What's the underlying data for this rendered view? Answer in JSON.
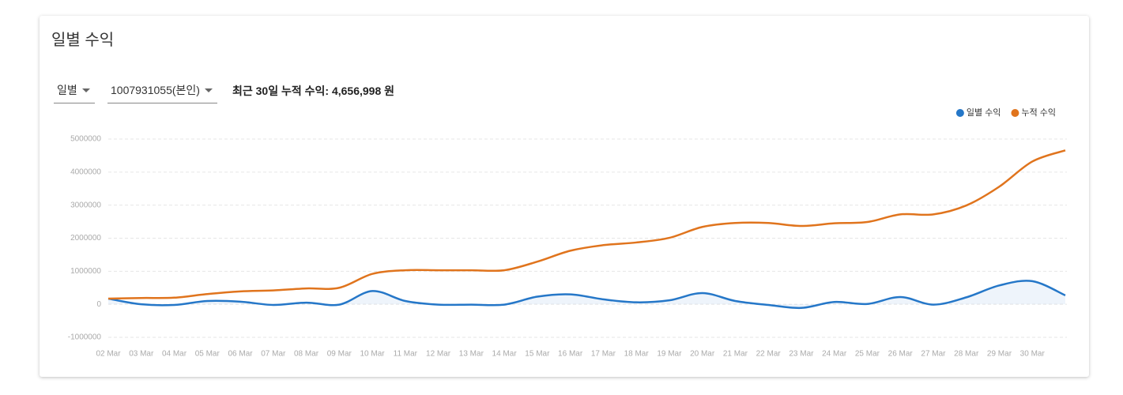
{
  "ui": {
    "title": "일별 수익",
    "dropdowns": [
      "일별",
      "1007931055(본인)"
    ],
    "summary": "최근 30일 누적 수익: 4,656,998 원"
  },
  "chart_data": {
    "type": "line",
    "categories": [
      "02 Mar",
      "03 Mar",
      "04 Mar",
      "05 Mar",
      "06 Mar",
      "07 Mar",
      "08 Mar",
      "09 Mar",
      "10 Mar",
      "11 Mar",
      "12 Mar",
      "13 Mar",
      "14 Mar",
      "15 Mar",
      "16 Mar",
      "17 Mar",
      "18 Mar",
      "19 Mar",
      "20 Mar",
      "21 Mar",
      "22 Mar",
      "23 Mar",
      "24 Mar",
      "25 Mar",
      "26 Mar",
      "27 Mar",
      "28 Mar",
      "29 Mar",
      "30 Mar",
      null
    ],
    "series": [
      {
        "name": "일별 수익",
        "color": "#2577c8",
        "area": true,
        "values": [
          170000,
          0,
          -20000,
          100000,
          80000,
          -20000,
          50000,
          -10000,
          400000,
          100000,
          -10000,
          -10000,
          -10000,
          230000,
          300000,
          150000,
          60000,
          120000,
          340000,
          100000,
          -20000,
          -110000,
          70000,
          10000,
          220000,
          -10000,
          210000,
          570000,
          700000,
          270000
        ]
      },
      {
        "name": "누적 수익",
        "color": "#e0741d",
        "area": false,
        "values": [
          170000,
          190000,
          200000,
          310000,
          390000,
          420000,
          480000,
          500000,
          920000,
          1030000,
          1030000,
          1030000,
          1030000,
          1290000,
          1620000,
          1790000,
          1870000,
          2010000,
          2340000,
          2460000,
          2460000,
          2370000,
          2450000,
          2490000,
          2720000,
          2720000,
          2990000,
          3560000,
          4320000,
          4656998
        ]
      }
    ],
    "ylim": [
      -1000000,
      5000000
    ],
    "yticks": [
      -1000000,
      0,
      1000000,
      2000000,
      3000000,
      4000000,
      5000000
    ],
    "grid": true,
    "legend": "top-right"
  }
}
